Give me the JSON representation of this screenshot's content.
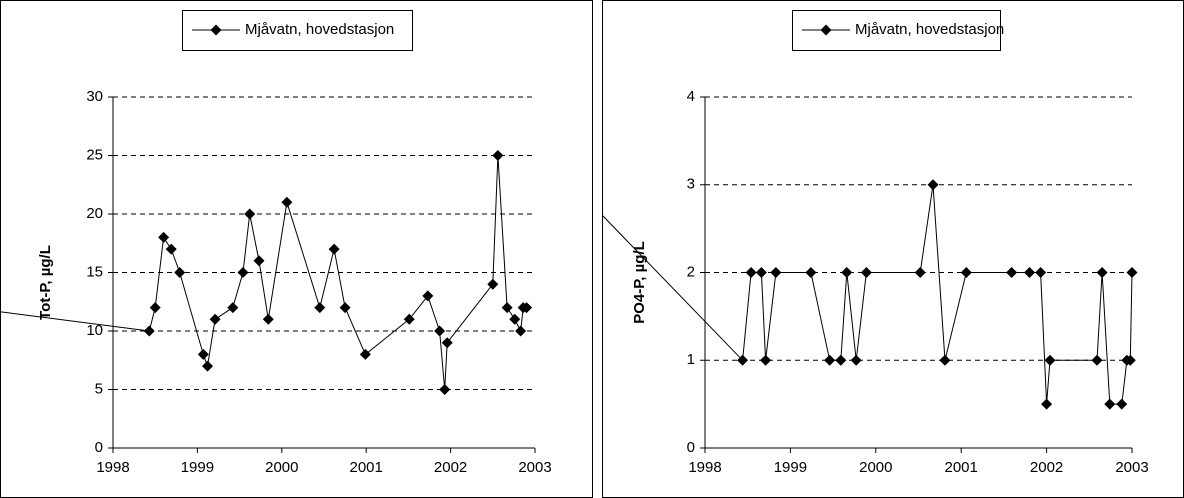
{
  "chart_data": [
    {
      "type": "line",
      "y_label": "Tot-P, µg/L",
      "legend": "top",
      "xlim": [
        1998,
        2003
      ],
      "xticks": [
        1998,
        1999,
        2000,
        2001,
        2002,
        2003
      ],
      "ylim": [
        0,
        30
      ],
      "yticks": [
        0,
        5,
        10,
        15,
        20,
        25,
        30
      ],
      "grid": true,
      "series": [
        {
          "name": "Mjåvatn, hovedstasjon",
          "color": "#000000",
          "x": [
            1996.6,
            1998.43,
            1998.5,
            1998.6,
            1998.69,
            1998.79,
            1999.07,
            1999.12,
            1999.21,
            1999.42,
            1999.54,
            1999.62,
            1999.73,
            1999.84,
            2000.06,
            2000.45,
            2000.62,
            2000.75,
            2000.99,
            2001.51,
            2001.73,
            2001.87,
            2001.93,
            2001.96,
            2002.5,
            2002.56,
            2002.67,
            2002.76,
            2002.83,
            2002.86,
            2002.9
          ],
          "values": [
            11.7,
            10,
            12,
            18,
            17,
            15,
            8,
            7,
            11,
            12,
            15,
            20,
            16,
            11,
            21,
            12,
            17,
            12,
            8,
            11,
            13,
            10,
            5,
            9,
            14,
            25,
            12,
            11,
            10,
            12,
            12
          ]
        }
      ]
    },
    {
      "type": "line",
      "y_label": "PO4-P, µg/L",
      "legend": "top",
      "xlim": [
        1998,
        2003
      ],
      "xticks": [
        1998,
        1999,
        2000,
        2001,
        2002,
        2003
      ],
      "ylim": [
        0,
        4
      ],
      "yticks": [
        0,
        1,
        2,
        3,
        4
      ],
      "grid": true,
      "series": [
        {
          "name": "Mjåvatn, hovedstasjon",
          "color": "#000000",
          "x": [
            1996.7,
            1998.44,
            1998.54,
            1998.66,
            1998.71,
            1998.83,
            1999.24,
            1999.46,
            1999.59,
            1999.66,
            1999.77,
            1999.89,
            2000.52,
            2000.67,
            2000.81,
            2001.06,
            2001.59,
            2001.8,
            2001.93,
            2002.0,
            2002.04,
            2002.59,
            2002.65,
            2002.74,
            2002.88,
            2002.94,
            2002.98,
            2003.0
          ],
          "values": [
            2.75,
            1,
            2,
            2,
            1,
            2,
            2,
            1,
            1,
            2,
            1,
            2,
            2,
            3,
            1,
            2,
            2,
            2,
            2,
            0.5,
            1,
            1,
            2,
            0.5,
            0.5,
            1,
            1,
            2
          ]
        }
      ]
    }
  ]
}
